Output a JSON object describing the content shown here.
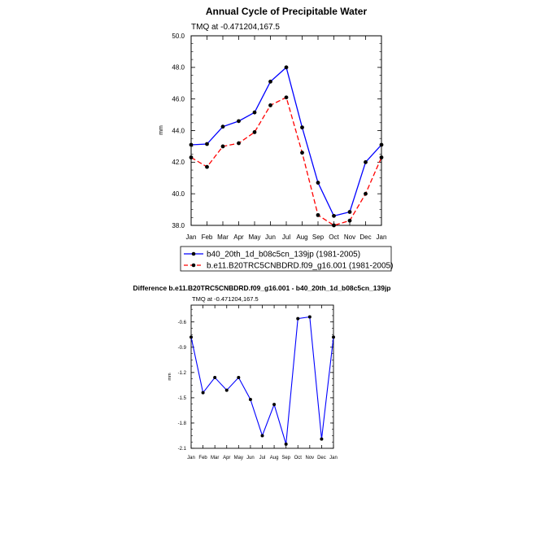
{
  "chart_data": [
    {
      "type": "line",
      "title": "Annual Cycle of Precipitable Water",
      "subtitle": "TMQ at -0.471204,167.5",
      "ylabel": "mm",
      "xlabel": "",
      "categories": [
        "Jan",
        "Feb",
        "Mar",
        "Apr",
        "May",
        "Jun",
        "Jul",
        "Aug",
        "Sep",
        "Oct",
        "Nov",
        "Dec",
        "Jan"
      ],
      "ylim": [
        38.0,
        50.0
      ],
      "yticks": [
        "38.0",
        "40.0",
        "42.0",
        "44.0",
        "46.0",
        "48.0",
        "50.0"
      ],
      "grid": false,
      "legend_position": "bottom",
      "series": [
        {
          "name": "b40_20th_1d_b08c5cn_139jp (1981-2005)",
          "color": "#0000ff",
          "dash": "solid",
          "values": [
            43.1,
            43.15,
            44.25,
            44.6,
            45.15,
            47.1,
            48.0,
            44.2,
            40.7,
            38.6,
            38.85,
            42.0,
            43.1
          ]
        },
        {
          "name": "b.e11.B20TRC5CNBDRD.f09_g16.001 (1981-2005)",
          "color": "#ff0000",
          "dash": "dashed",
          "values": [
            42.3,
            41.7,
            43.0,
            43.2,
            43.9,
            45.6,
            46.1,
            42.6,
            38.65,
            38.0,
            38.3,
            40.0,
            42.3
          ]
        }
      ]
    },
    {
      "type": "line",
      "title": "Difference b.e11.B20TRC5CNBDRD.f09_g16.001 - b40_20th_1d_b08c5cn_139jp",
      "subtitle": "TMQ at -0.471204,167.5",
      "ylabel": "mm",
      "xlabel": "",
      "categories": [
        "Jan",
        "Feb",
        "Mar",
        "Apr",
        "May",
        "Jun",
        "Jul",
        "Aug",
        "Sep",
        "Oct",
        "Nov",
        "Dec",
        "Jan"
      ],
      "ylim": [
        -2.1,
        -0.4
      ],
      "yticks": [
        "-2.1",
        "-1.8",
        "-1.5",
        "-1.2",
        "-0.9",
        "-0.6"
      ],
      "grid": false,
      "series": [
        {
          "name": "",
          "color": "#0000ff",
          "dash": "solid",
          "values": [
            -0.78,
            -1.44,
            -1.26,
            -1.41,
            -1.26,
            -1.52,
            -1.95,
            -1.58,
            -2.05,
            -0.56,
            -0.54,
            -1.99,
            -0.78
          ]
        }
      ]
    }
  ]
}
